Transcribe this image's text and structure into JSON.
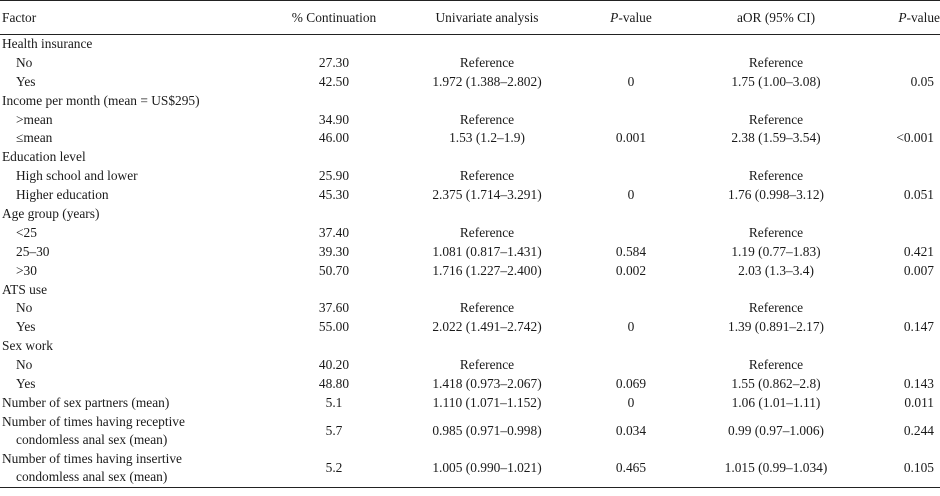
{
  "header": {
    "factor": "Factor",
    "continuation": "% Continuation",
    "univariate": "Univariate analysis",
    "p_italic": "P",
    "p_rest": "-value",
    "aor": "aOR (95% CI)",
    "p2_italic": "P",
    "p2_rest": "-value"
  },
  "rows": [
    {
      "factor": "Health insurance",
      "group": true
    },
    {
      "factor": "No",
      "pct": "27.30",
      "uni": "Reference",
      "p": "",
      "aor": "Reference",
      "p2": ""
    },
    {
      "factor": "Yes",
      "pct": "42.50",
      "uni": "1.972 (1.388–2.802)",
      "p": "0",
      "aor": "1.75 (1.00–3.08)",
      "p2": "0.05"
    },
    {
      "factor": "Income per month (mean = US$295)",
      "group": true
    },
    {
      "factor": ">mean",
      "pct": "34.90",
      "uni": "Reference",
      "p": "",
      "aor": "Reference",
      "p2": ""
    },
    {
      "factor": "≤mean",
      "pct": "46.00",
      "uni": "1.53 (1.2–1.9)",
      "p": "0.001",
      "aor": "2.38 (1.59–3.54)",
      "p2": "<0.001"
    },
    {
      "factor": "Education level",
      "group": true
    },
    {
      "factor": "High school and lower",
      "pct": "25.90",
      "uni": "Reference",
      "p": "",
      "aor": "Reference",
      "p2": ""
    },
    {
      "factor": "Higher education",
      "pct": "45.30",
      "uni": "2.375 (1.714–3.291)",
      "p": "0",
      "aor": "1.76 (0.998–3.12)",
      "p2": "0.051"
    },
    {
      "factor": "Age group (years)",
      "group": true
    },
    {
      "factor": "<25",
      "pct": "37.40",
      "uni": "Reference",
      "p": "",
      "aor": "Reference",
      "p2": ""
    },
    {
      "factor": "25–30",
      "pct": "39.30",
      "uni": "1.081 (0.817–1.431)",
      "p": "0.584",
      "aor": "1.19 (0.77–1.83)",
      "p2": "0.421"
    },
    {
      "factor": ">30",
      "pct": "50.70",
      "uni": "1.716 (1.227–2.400)",
      "p": "0.002",
      "aor": "2.03 (1.3–3.4)",
      "p2": "0.007"
    },
    {
      "factor": "ATS use",
      "group": true
    },
    {
      "factor": "No",
      "pct": "37.60",
      "uni": "Reference",
      "p": "",
      "aor": "Reference",
      "p2": ""
    },
    {
      "factor": "Yes",
      "pct": "55.00",
      "uni": "2.022 (1.491–2.742)",
      "p": "0",
      "aor": "1.39 (0.891–2.17)",
      "p2": "0.147"
    },
    {
      "factor": "Sex work",
      "group": true
    },
    {
      "factor": "No",
      "pct": "40.20",
      "uni": "Reference",
      "p": "",
      "aor": "Reference",
      "p2": ""
    },
    {
      "factor": "Yes",
      "pct": "48.80",
      "uni": "1.418 (0.973–2.067)",
      "p": "0.069",
      "aor": "1.55 (0.862–2.8)",
      "p2": "0.143"
    },
    {
      "factor": "Number of sex partners (mean)",
      "pct": "5.1",
      "uni": "1.110 (1.071–1.152)",
      "p": "0",
      "aor": "1.06 (1.01–1.11)",
      "p2": "0.011",
      "top": true
    },
    {
      "factor": "Number of times having receptive",
      "factor2": "condomless anal sex (mean)",
      "pct": "5.7",
      "uni": "0.985 (0.971–0.998)",
      "p": "0.034",
      "aor": "0.99 (0.97–1.006)",
      "p2": "0.244",
      "top": true
    },
    {
      "factor": "Number of times having insertive",
      "factor2": "condomless anal sex (mean)",
      "pct": "5.2",
      "uni": "1.005 (0.990–1.021)",
      "p": "0.465",
      "aor": "1.015 (0.99–1.034)",
      "p2": "0.105",
      "top": true
    }
  ]
}
